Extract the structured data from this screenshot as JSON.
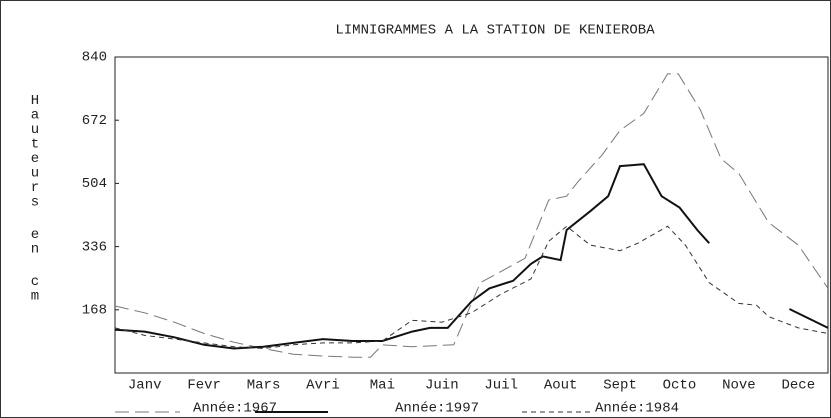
{
  "chart_data": {
    "type": "line",
    "title": "LIMNIGRAMMES A LA STATION DE KENIEROBA",
    "ylabel": "Hauteurs en cm",
    "xlim": [
      0,
      12
    ],
    "xticks": [
      {
        "value": 0.5,
        "label": "Janv"
      },
      {
        "value": 1.5,
        "label": "Fevr"
      },
      {
        "value": 2.5,
        "label": "Mars"
      },
      {
        "value": 3.5,
        "label": "Avri"
      },
      {
        "value": 4.5,
        "label": "Mai"
      },
      {
        "value": 5.5,
        "label": "Juin"
      },
      {
        "value": 6.5,
        "label": "Juil"
      },
      {
        "value": 7.5,
        "label": "Aout"
      },
      {
        "value": 8.5,
        "label": "Sept"
      },
      {
        "value": 9.5,
        "label": "Octo"
      },
      {
        "value": 10.5,
        "label": "Nove"
      },
      {
        "value": 11.5,
        "label": "Dece"
      }
    ],
    "ylim": [
      0,
      840
    ],
    "yticks": [
      168,
      336,
      504,
      672,
      840
    ],
    "grid": false,
    "series": [
      {
        "name": "Année:1967",
        "color": "#777777",
        "line_style": "long-dash",
        "x": [
          0,
          0.5,
          1,
          1.5,
          2,
          2.5,
          3,
          3.5,
          4,
          4.3,
          4.5,
          5,
          5.7,
          6.15,
          6.9,
          7.3,
          7.6,
          7.8,
          8.2,
          8.5,
          8.9,
          9.3,
          9.48,
          9.85,
          10.2,
          10.5,
          11,
          11.5,
          12
        ],
        "values": [
          178,
          160,
          135,
          105,
          82,
          65,
          50,
          45,
          42,
          42,
          75,
          70,
          75,
          240,
          305,
          460,
          470,
          510,
          580,
          645,
          690,
          795,
          795,
          700,
          570,
          530,
          400,
          340,
          225
        ]
      },
      {
        "name": "Année:1997",
        "color": "#111111",
        "line_style": "solid",
        "x": [
          0,
          0.5,
          1,
          1.5,
          2,
          2.5,
          3,
          3.5,
          4,
          4.5,
          5,
          5.3,
          5.6,
          6,
          6.3,
          6.7,
          7,
          7.2,
          7.5,
          7.6,
          8,
          8.3,
          8.5,
          8.9,
          9.2,
          9.5,
          9.8,
          10,
          10.5,
          11.35,
          12
        ],
        "values": [
          115,
          110,
          95,
          75,
          65,
          70,
          80,
          90,
          85,
          85,
          110,
          120,
          120,
          190,
          225,
          245,
          290,
          310,
          300,
          380,
          430,
          470,
          550,
          555,
          470,
          440,
          380,
          345,
          null,
          170,
          120
        ]
      },
      {
        "name": "Année:1984",
        "color": "#333333",
        "line_style": "short-dash",
        "x": [
          0,
          0.5,
          1,
          1.5,
          2,
          2.5,
          3,
          3.5,
          4,
          4.5,
          5,
          5.5,
          6,
          6.5,
          7,
          7.3,
          7.6,
          8,
          8.5,
          8.8,
          9.3,
          9.6,
          10,
          10.5,
          10.8,
          11,
          11.5,
          12
        ],
        "values": [
          120,
          100,
          90,
          80,
          70,
          65,
          75,
          80,
          80,
          85,
          140,
          135,
          160,
          210,
          250,
          350,
          390,
          340,
          325,
          345,
          390,
          340,
          240,
          185,
          180,
          150,
          120,
          105
        ]
      }
    ]
  }
}
